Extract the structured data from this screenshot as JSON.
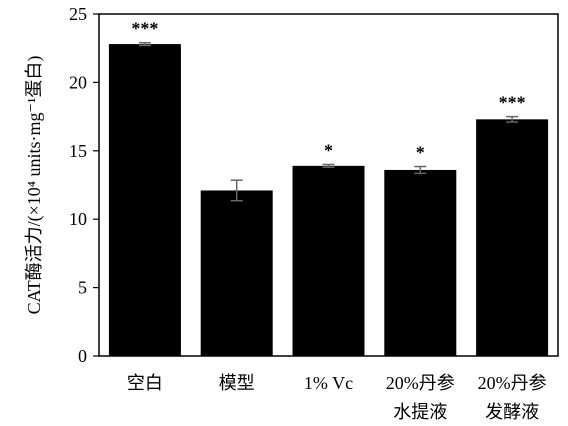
{
  "chart_data": {
    "type": "bar",
    "categories": [
      {
        "lines": [
          "空白"
        ]
      },
      {
        "lines": [
          "模型"
        ]
      },
      {
        "lines": [
          "1% Vc"
        ]
      },
      {
        "lines": [
          "20%丹参",
          "水提液"
        ]
      },
      {
        "lines": [
          "20%丹参",
          "发酵液"
        ]
      }
    ],
    "values": [
      22.8,
      12.1,
      13.9,
      13.6,
      17.3
    ],
    "errors": [
      0.1,
      0.75,
      0.1,
      0.25,
      0.2
    ],
    "significance": [
      "***",
      "",
      "*",
      "*",
      "***"
    ],
    "ylabel": "CAT酶活力/(×10⁴ units·mg⁻¹蛋白)",
    "ylim": [
      0,
      25
    ],
    "yticks": [
      0,
      5,
      10,
      15,
      20,
      25
    ],
    "grid": false,
    "colors": {
      "bar": "#000000",
      "axis": "#000000",
      "errorbar": "#666666",
      "text": "#000000"
    }
  }
}
